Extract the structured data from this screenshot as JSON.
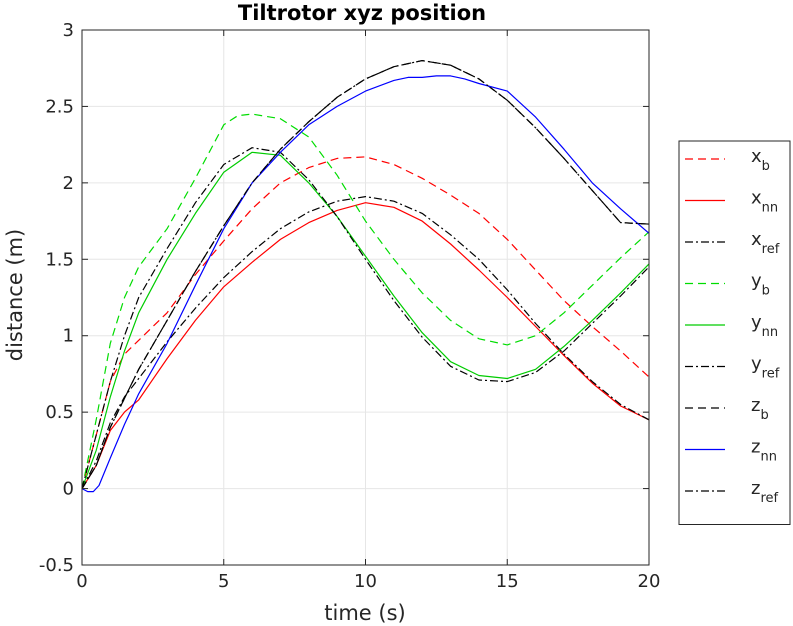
{
  "chart_data": {
    "type": "line",
    "title": "Tiltrotor xyz position",
    "xlabel": "time (s)",
    "ylabel": "distance (m)",
    "xlim": [
      0,
      20
    ],
    "ylim": [
      -0.5,
      3
    ],
    "xticks": [
      0,
      5,
      10,
      15,
      20
    ],
    "yticks": [
      -0.5,
      0,
      0.5,
      1,
      1.5,
      2,
      2.5,
      3
    ],
    "xtick_labels": [
      "0",
      "5",
      "10",
      "15",
      "20"
    ],
    "ytick_labels": [
      "-0.5",
      "0",
      "0.5",
      "1",
      "1.5",
      "2",
      "2.5",
      "3"
    ],
    "grid": true,
    "legend_position": "outside-right",
    "series": [
      {
        "name": "x_b",
        "name_base": "x",
        "name_sub": "b",
        "color": "#ff0000",
        "style": "dashed",
        "x": [
          0,
          0.5,
          1,
          1.5,
          2,
          3,
          4,
          5,
          6,
          7,
          8,
          9,
          10,
          11,
          12,
          13,
          14,
          15,
          16,
          17,
          18,
          19,
          20
        ],
        "y": [
          0,
          0.35,
          0.7,
          0.88,
          0.97,
          1.15,
          1.4,
          1.62,
          1.83,
          2.0,
          2.1,
          2.16,
          2.17,
          2.12,
          2.03,
          1.92,
          1.8,
          1.63,
          1.43,
          1.23,
          1.06,
          0.9,
          0.73
        ]
      },
      {
        "name": "x_nn",
        "name_base": "x",
        "name_sub": "nn",
        "color": "#ff0000",
        "style": "solid",
        "x": [
          0,
          0.5,
          1,
          1.5,
          2,
          3,
          4,
          5,
          6,
          7,
          8,
          9,
          10,
          11,
          12,
          13,
          14,
          15,
          16,
          17,
          18,
          19,
          20
        ],
        "y": [
          0,
          0.15,
          0.38,
          0.5,
          0.58,
          0.85,
          1.1,
          1.32,
          1.48,
          1.63,
          1.74,
          1.82,
          1.87,
          1.84,
          1.75,
          1.6,
          1.43,
          1.25,
          1.06,
          0.87,
          0.69,
          0.54,
          0.45
        ]
      },
      {
        "name": "x_ref",
        "name_base": "x",
        "name_sub": "ref",
        "color": "#000000",
        "style": "dashdot",
        "x": [
          0,
          0.5,
          1,
          1.5,
          2,
          3,
          4,
          5,
          6,
          7,
          8,
          9,
          10,
          11,
          12,
          13,
          14,
          15,
          16,
          17,
          18,
          19,
          20
        ],
        "y": [
          0,
          0.18,
          0.43,
          0.6,
          0.72,
          0.96,
          1.18,
          1.38,
          1.55,
          1.7,
          1.81,
          1.88,
          1.91,
          1.88,
          1.8,
          1.66,
          1.5,
          1.3,
          1.08,
          0.88,
          0.7,
          0.55,
          0.45
        ]
      },
      {
        "name": "y_b",
        "name_base": "y",
        "name_sub": "b",
        "color": "#00dd00",
        "style": "dashed",
        "x": [
          0,
          0.5,
          1,
          1.5,
          2,
          3,
          4,
          5,
          5.5,
          6,
          7,
          8,
          9,
          10,
          11,
          12,
          13,
          14,
          15,
          16,
          17,
          18,
          19,
          20
        ],
        "y": [
          0,
          0.45,
          0.95,
          1.25,
          1.45,
          1.7,
          2.03,
          2.38,
          2.44,
          2.45,
          2.42,
          2.3,
          2.05,
          1.75,
          1.5,
          1.28,
          1.1,
          0.98,
          0.94,
          1.0,
          1.15,
          1.33,
          1.51,
          1.68
        ]
      },
      {
        "name": "y_nn",
        "name_base": "y",
        "name_sub": "nn",
        "color": "#00cc00",
        "style": "solid",
        "x": [
          0,
          0.5,
          1,
          1.5,
          2,
          3,
          4,
          5,
          6,
          7,
          8,
          9,
          10,
          11,
          12,
          13,
          14,
          15,
          16,
          17,
          18,
          19,
          20
        ],
        "y": [
          0,
          0.25,
          0.6,
          0.9,
          1.15,
          1.5,
          1.8,
          2.07,
          2.2,
          2.18,
          2.0,
          1.78,
          1.52,
          1.26,
          1.02,
          0.83,
          0.74,
          0.72,
          0.78,
          0.93,
          1.1,
          1.28,
          1.47
        ]
      },
      {
        "name": "y_ref",
        "name_base": "y",
        "name_sub": "ref",
        "color": "#000000",
        "style": "dashdot",
        "x": [
          0,
          0.5,
          1,
          1.5,
          2,
          3,
          4,
          5,
          6,
          7,
          8,
          9,
          10,
          11,
          12,
          13,
          14,
          15,
          16,
          17,
          18,
          19,
          20
        ],
        "y": [
          0,
          0.35,
          0.7,
          1.0,
          1.25,
          1.57,
          1.87,
          2.12,
          2.23,
          2.2,
          2.02,
          1.78,
          1.5,
          1.23,
          0.99,
          0.8,
          0.71,
          0.7,
          0.76,
          0.9,
          1.08,
          1.26,
          1.45
        ]
      },
      {
        "name": "z_b",
        "name_base": "z",
        "name_sub": "b",
        "color": "#000000",
        "style": "dashed",
        "x": [
          0,
          0.5,
          1,
          2,
          3,
          4,
          5,
          6,
          7,
          8,
          9,
          10,
          11,
          12,
          13,
          14,
          15,
          16,
          17,
          18,
          19,
          20
        ],
        "y": [
          0,
          0.15,
          0.4,
          0.78,
          1.1,
          1.42,
          1.72,
          2.0,
          2.22,
          2.4,
          2.56,
          2.68,
          2.76,
          2.8,
          2.77,
          2.68,
          2.54,
          2.36,
          2.16,
          1.95,
          1.74,
          1.73
        ]
      },
      {
        "name": "z_nn",
        "name_base": "z",
        "name_sub": "nn",
        "color": "#0000ff",
        "style": "solid",
        "x": [
          0,
          0.2,
          0.4,
          0.6,
          1,
          1.5,
          2,
          3,
          4,
          5,
          6,
          7,
          8,
          9,
          10,
          11,
          11.5,
          12,
          12.5,
          13,
          13.5,
          14,
          15,
          16,
          17,
          18,
          19,
          20
        ],
        "y": [
          0,
          -0.02,
          -0.02,
          0.02,
          0.2,
          0.42,
          0.62,
          0.95,
          1.33,
          1.7,
          2.0,
          2.2,
          2.38,
          2.5,
          2.6,
          2.67,
          2.69,
          2.69,
          2.7,
          2.7,
          2.68,
          2.65,
          2.6,
          2.43,
          2.22,
          2.0,
          1.83,
          1.67
        ]
      },
      {
        "name": "z_ref",
        "name_base": "z",
        "name_sub": "ref",
        "color": "#000000",
        "style": "dashdot",
        "x": [
          0,
          0.5,
          1,
          2,
          3,
          4,
          5,
          6,
          7,
          8,
          9,
          10,
          11,
          12,
          13,
          14,
          15,
          16,
          17,
          18,
          19,
          20
        ],
        "y": [
          0,
          0.15,
          0.4,
          0.78,
          1.1,
          1.42,
          1.72,
          2.0,
          2.22,
          2.4,
          2.56,
          2.68,
          2.76,
          2.8,
          2.77,
          2.68,
          2.54,
          2.36,
          2.16,
          1.95,
          1.74,
          1.73
        ]
      }
    ]
  }
}
